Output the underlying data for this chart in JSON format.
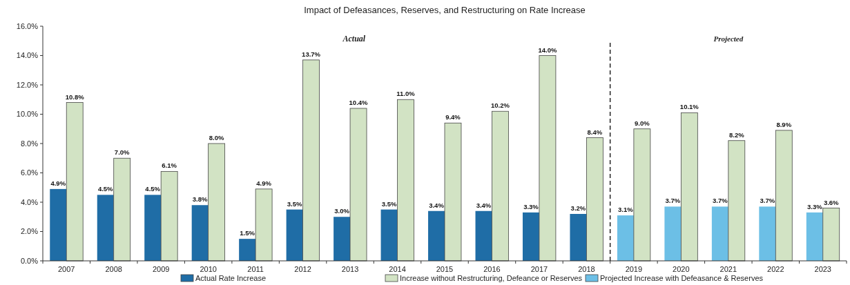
{
  "chart_data": {
    "type": "bar",
    "title": "Impact of  Defeasances, Reserves, and Restructuring on Rate Increase",
    "categories": [
      "2007",
      "2008",
      "2009",
      "2010",
      "2011",
      "2012",
      "2013",
      "2014",
      "2015",
      "2016",
      "2017",
      "2018",
      "2019",
      "2020",
      "2021",
      "2022",
      "2023"
    ],
    "series": [
      {
        "name": "Actual Rate Increase",
        "color": "#1f6da6",
        "values": [
          4.9,
          4.5,
          4.5,
          3.8,
          1.5,
          3.5,
          3.0,
          3.5,
          3.4,
          3.4,
          3.3,
          3.2,
          null,
          null,
          null,
          null,
          null
        ],
        "value_labels": [
          "4.9%",
          "4.5%",
          "4.5%",
          "3.8%",
          "1.5%",
          "3.5%",
          "3.0%",
          "3.5%",
          "3.4%",
          "3.4%",
          "3.3%",
          "3.2%",
          null,
          null,
          null,
          null,
          null
        ]
      },
      {
        "name": "Increase without Restructuring, Defeance or Reserves",
        "color": "#d2e3c4",
        "values": [
          10.8,
          7.0,
          6.1,
          8.0,
          4.9,
          13.7,
          10.4,
          11.0,
          9.4,
          10.2,
          14.0,
          8.4,
          9.0,
          10.1,
          8.2,
          8.9,
          3.6
        ],
        "value_labels": [
          "10.8%",
          "7.0%",
          "6.1%",
          "8.0%",
          "4.9%",
          "13.7%",
          "10.4%",
          "11.0%",
          "9.4%",
          "10.2%",
          "14.0%",
          "8.4%",
          "9.0%",
          "10.1%",
          "8.2%",
          "8.9%",
          "3.6%"
        ]
      },
      {
        "name": "Projected Increase with Defeasance & Reserves",
        "color": "#6cbfe6",
        "values": [
          null,
          null,
          null,
          null,
          null,
          null,
          null,
          null,
          null,
          null,
          null,
          null,
          3.1,
          3.7,
          3.7,
          3.7,
          3.3
        ],
        "value_labels": [
          null,
          null,
          null,
          null,
          null,
          null,
          null,
          null,
          null,
          null,
          null,
          null,
          "3.1%",
          "3.7%",
          "3.7%",
          "3.7%",
          "3.3%"
        ]
      }
    ],
    "ylim": [
      0,
      16
    ],
    "yticks": [
      {
        "value": 0,
        "label": "0.0%"
      },
      {
        "value": 2,
        "label": "2.0%"
      },
      {
        "value": 4,
        "label": "4.0%"
      },
      {
        "value": 6,
        "label": "6.0%"
      },
      {
        "value": 8,
        "label": "8.0%"
      },
      {
        "value": 10,
        "label": "10.0%"
      },
      {
        "value": 12,
        "label": "12.0%"
      },
      {
        "value": 14,
        "label": "14.0%"
      },
      {
        "value": 16,
        "label": "16.0%"
      }
    ],
    "annotations": [
      "Actual",
      "Projected"
    ],
    "grid": false,
    "legend": "bottom"
  }
}
